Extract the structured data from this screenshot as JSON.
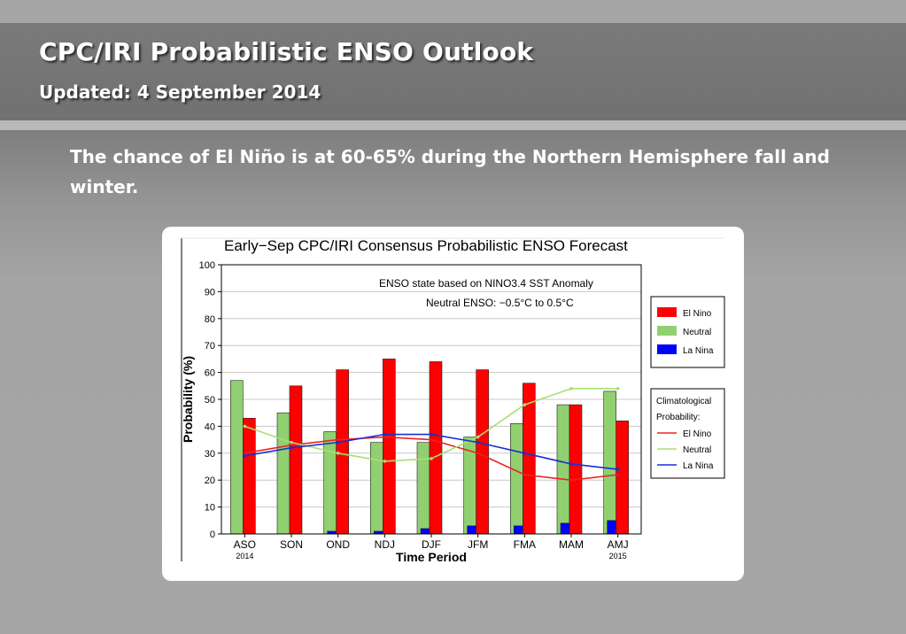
{
  "slide": {
    "title": "CPC/IRI Probabilistic ENSO Outlook",
    "subtitle": "Updated: 4 September 2014",
    "body": "The chance of El Niño is at 60-65% during the Northern Hemisphere fall and winter."
  },
  "chart_data": {
    "type": "bar",
    "title": "Early−Sep CPC/IRI Consensus Probabilistic ENSO Forecast",
    "xlabel": "Time Period",
    "ylabel": "Probability (%)",
    "ylim": [
      0,
      100
    ],
    "yticks": [
      0,
      10,
      20,
      30,
      40,
      50,
      60,
      70,
      80,
      90,
      100
    ],
    "grid": true,
    "categories": [
      "ASO",
      "SON",
      "OND",
      "NDJ",
      "DJF",
      "JFM",
      "FMA",
      "MAM",
      "AMJ"
    ],
    "year_labels": [
      "2014",
      "",
      "",
      "",
      "",
      "",
      "",
      "",
      "2015"
    ],
    "series": [
      {
        "name": "El Nino",
        "color": "#ff0000",
        "values": [
          43,
          55,
          61,
          65,
          64,
          61,
          56,
          48,
          42
        ]
      },
      {
        "name": "Neutral",
        "color": "#90d070",
        "values": [
          57,
          45,
          38,
          34,
          34,
          36,
          41,
          48,
          53
        ]
      },
      {
        "name": "La Nina",
        "color": "#0000ff",
        "values": [
          0,
          0,
          1,
          1,
          2,
          3,
          3,
          4,
          5
        ]
      }
    ],
    "climatology": {
      "title": "Climatological Probability:",
      "series": [
        {
          "name": "El Nino",
          "color": "#ee2222",
          "values": [
            30,
            33,
            35,
            36,
            35,
            30,
            22,
            20,
            22
          ]
        },
        {
          "name": "Neutral",
          "color": "#a8e070",
          "values": [
            40,
            34,
            30,
            27,
            28,
            36,
            48,
            54,
            54
          ]
        },
        {
          "name": "La Nina",
          "color": "#1a2fd0",
          "values": [
            29,
            32,
            34,
            37,
            37,
            34,
            30,
            26,
            24
          ]
        }
      ]
    },
    "annotations": [
      "ENSO state based on NINO3.4 SST Anomaly",
      "Neutral ENSO: −0.5°C to 0.5°C"
    ],
    "legend_position": "right"
  }
}
